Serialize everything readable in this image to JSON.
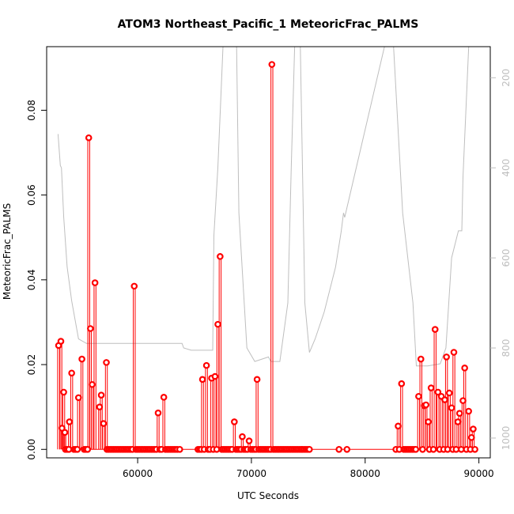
{
  "chart_data": {
    "type": "scatter",
    "title": "ATOM3 Northeast_Pacific_1 MeteoricFrac_PALMS",
    "xlabel": "UTC Seconds",
    "ylabel": "MeteoricFrac_PALMS",
    "xlim": [
      52000,
      91000
    ],
    "ylim": [
      -0.002,
      0.095
    ],
    "x_ticks": [
      {
        "value": 60000,
        "label": "60000"
      },
      {
        "value": 70000,
        "label": "70000"
      },
      {
        "value": 80000,
        "label": "80000"
      },
      {
        "value": 90000,
        "label": "90000"
      }
    ],
    "y_ticks": [
      {
        "value": 0.0,
        "label": "0.00"
      },
      {
        "value": 0.02,
        "label": "0.02"
      },
      {
        "value": 0.04,
        "label": "0.04"
      },
      {
        "value": 0.06,
        "label": "0.06"
      },
      {
        "value": 0.08,
        "label": "0.08"
      }
    ],
    "right_axis": {
      "reversed": true,
      "lim": [
        131,
        1044
      ],
      "ticks": [
        {
          "value": 200,
          "label": "200"
        },
        {
          "value": 400,
          "label": "400"
        },
        {
          "value": 600,
          "label": "600"
        },
        {
          "value": 800,
          "label": "800"
        },
        {
          "value": 1000,
          "label": "1000"
        }
      ]
    },
    "grid": false,
    "series": [
      {
        "color": "#ff0000",
        "style": "points with vertical drop lines to zero",
        "points": [
          [
            53050,
            0.0245
          ],
          [
            53250,
            0.0255
          ],
          [
            53350,
            0.005
          ],
          [
            53500,
            0.0135
          ],
          [
            53600,
            0.004
          ],
          [
            54000,
            0.0065
          ],
          [
            54200,
            0.018
          ],
          [
            54800,
            0.0122
          ],
          [
            55100,
            0.0213
          ],
          [
            55700,
            0.0735
          ],
          [
            55850,
            0.0285
          ],
          [
            56000,
            0.0153
          ],
          [
            56250,
            0.0393
          ],
          [
            56650,
            0.01
          ],
          [
            56800,
            0.0128
          ],
          [
            57000,
            0.0061
          ],
          [
            57250,
            0.0205
          ],
          [
            59700,
            0.0385
          ],
          [
            61800,
            0.0086
          ],
          [
            62300,
            0.0123
          ],
          [
            65700,
            0.0165
          ],
          [
            66050,
            0.0198
          ],
          [
            66500,
            0.0168
          ],
          [
            66800,
            0.0172
          ],
          [
            67050,
            0.0295
          ],
          [
            67250,
            0.0455
          ],
          [
            68500,
            0.0065
          ],
          [
            69200,
            0.003
          ],
          [
            69800,
            0.002
          ],
          [
            70500,
            0.0165
          ],
          [
            71800,
            0.0908
          ],
          [
            82900,
            0.0055
          ],
          [
            83200,
            0.0155
          ],
          [
            84700,
            0.0125
          ],
          [
            84900,
            0.0213
          ],
          [
            85200,
            0.0103
          ],
          [
            85350,
            0.0105
          ],
          [
            85550,
            0.0065
          ],
          [
            85800,
            0.0145
          ],
          [
            86150,
            0.0283
          ],
          [
            86400,
            0.0135
          ],
          [
            86700,
            0.0125
          ],
          [
            87000,
            0.0117
          ],
          [
            87150,
            0.0218
          ],
          [
            87400,
            0.0133
          ],
          [
            87600,
            0.0098
          ],
          [
            87800,
            0.0229
          ],
          [
            88150,
            0.0065
          ],
          [
            88300,
            0.0085
          ],
          [
            88600,
            0.0115
          ],
          [
            88750,
            0.0192
          ],
          [
            89100,
            0.009
          ],
          [
            89350,
            0.0028
          ],
          [
            89500,
            0.0048
          ],
          [
            53650,
            0
          ],
          [
            53800,
            0
          ],
          [
            53950,
            0
          ],
          [
            54400,
            0
          ],
          [
            54550,
            0
          ],
          [
            54700,
            0
          ],
          [
            55300,
            0
          ],
          [
            55450,
            0
          ],
          [
            55600,
            0
          ],
          [
            57300,
            0
          ],
          [
            57450,
            0
          ],
          [
            57600,
            0
          ],
          [
            57750,
            0
          ],
          [
            57900,
            0
          ],
          [
            58050,
            0
          ],
          [
            58200,
            0
          ],
          [
            58350,
            0
          ],
          [
            58500,
            0
          ],
          [
            58650,
            0
          ],
          [
            58800,
            0
          ],
          [
            58950,
            0
          ],
          [
            59100,
            0
          ],
          [
            59250,
            0
          ],
          [
            59400,
            0
          ],
          [
            59550,
            0
          ],
          [
            59850,
            0
          ],
          [
            60000,
            0
          ],
          [
            60150,
            0
          ],
          [
            60300,
            0
          ],
          [
            60450,
            0
          ],
          [
            60600,
            0
          ],
          [
            60750,
            0
          ],
          [
            60900,
            0
          ],
          [
            61050,
            0
          ],
          [
            61200,
            0
          ],
          [
            61350,
            0
          ],
          [
            61500,
            0
          ],
          [
            61650,
            0
          ],
          [
            61950,
            0
          ],
          [
            62100,
            0
          ],
          [
            62450,
            0
          ],
          [
            62600,
            0
          ],
          [
            62750,
            0
          ],
          [
            62900,
            0
          ],
          [
            63050,
            0
          ],
          [
            63200,
            0
          ],
          [
            63350,
            0
          ],
          [
            63500,
            0
          ],
          [
            63700,
            0
          ],
          [
            65300,
            0
          ],
          [
            65450,
            0
          ],
          [
            65600,
            0
          ],
          [
            65850,
            0
          ],
          [
            66200,
            0
          ],
          [
            66350,
            0
          ],
          [
            66650,
            0
          ],
          [
            66950,
            0
          ],
          [
            67400,
            0
          ],
          [
            67550,
            0
          ],
          [
            67700,
            0
          ],
          [
            67850,
            0
          ],
          [
            68000,
            0
          ],
          [
            68150,
            0
          ],
          [
            68300,
            0
          ],
          [
            68650,
            0
          ],
          [
            68800,
            0
          ],
          [
            68950,
            0
          ],
          [
            69100,
            0
          ],
          [
            69350,
            0
          ],
          [
            69500,
            0
          ],
          [
            69650,
            0
          ],
          [
            69950,
            0
          ],
          [
            70100,
            0
          ],
          [
            70250,
            0
          ],
          [
            70400,
            0
          ],
          [
            70650,
            0
          ],
          [
            70800,
            0
          ],
          [
            70950,
            0
          ],
          [
            71100,
            0
          ],
          [
            71250,
            0
          ],
          [
            71400,
            0
          ],
          [
            71550,
            0
          ],
          [
            71700,
            0
          ],
          [
            71950,
            0
          ],
          [
            72100,
            0
          ],
          [
            72250,
            0
          ],
          [
            72400,
            0
          ],
          [
            72550,
            0
          ],
          [
            72700,
            0
          ],
          [
            72850,
            0
          ],
          [
            73000,
            0
          ],
          [
            73150,
            0
          ],
          [
            73300,
            0
          ],
          [
            73450,
            0
          ],
          [
            73600,
            0
          ],
          [
            73750,
            0
          ],
          [
            73900,
            0
          ],
          [
            74050,
            0
          ],
          [
            74200,
            0
          ],
          [
            74350,
            0
          ],
          [
            74500,
            0
          ],
          [
            74650,
            0
          ],
          [
            74800,
            0
          ],
          [
            74950,
            0
          ],
          [
            75100,
            0
          ],
          [
            77700,
            0
          ],
          [
            78400,
            0
          ],
          [
            82700,
            0
          ],
          [
            83000,
            0
          ],
          [
            83400,
            0
          ],
          [
            83550,
            0
          ],
          [
            83700,
            0
          ],
          [
            83850,
            0
          ],
          [
            84000,
            0
          ],
          [
            84150,
            0
          ],
          [
            84300,
            0
          ],
          [
            84450,
            0
          ],
          [
            85050,
            0
          ],
          [
            85650,
            0
          ],
          [
            86000,
            0
          ],
          [
            86550,
            0
          ],
          [
            86900,
            0
          ],
          [
            87250,
            0
          ],
          [
            87700,
            0
          ],
          [
            88000,
            0
          ],
          [
            88450,
            0
          ],
          [
            88900,
            0
          ],
          [
            89250,
            0
          ],
          [
            89650,
            0
          ]
        ]
      },
      {
        "color": "#bebebe",
        "axis": "right",
        "style": "line",
        "points": [
          [
            53000,
            325
          ],
          [
            53200,
            395
          ],
          [
            53300,
            400
          ],
          [
            53500,
            510
          ],
          [
            53800,
            620
          ],
          [
            54200,
            695
          ],
          [
            54800,
            780
          ],
          [
            55500,
            790
          ],
          [
            57000,
            790
          ],
          [
            60000,
            790
          ],
          [
            63900,
            790
          ],
          [
            64050,
            800
          ],
          [
            64700,
            805
          ],
          [
            66000,
            805
          ],
          [
            66600,
            805
          ],
          [
            66700,
            550
          ],
          [
            67050,
            400
          ],
          [
            67500,
            131
          ],
          [
            68700,
            131
          ],
          [
            68900,
            500
          ],
          [
            69600,
            800
          ],
          [
            70300,
            830
          ],
          [
            71500,
            820
          ],
          [
            71700,
            830
          ],
          [
            72500,
            830
          ],
          [
            73200,
            700
          ],
          [
            73500,
            400
          ],
          [
            73800,
            131
          ],
          [
            74300,
            131
          ],
          [
            74700,
            700
          ],
          [
            75100,
            810
          ],
          [
            75600,
            780
          ],
          [
            76400,
            720
          ],
          [
            77400,
            620
          ],
          [
            77900,
            540
          ],
          [
            78100,
            500
          ],
          [
            78200,
            510
          ],
          [
            81700,
            131
          ],
          [
            82500,
            131
          ],
          [
            83300,
            500
          ],
          [
            84200,
            700
          ],
          [
            84500,
            840
          ],
          [
            85500,
            840
          ],
          [
            86600,
            835
          ],
          [
            87100,
            800
          ],
          [
            87600,
            600
          ],
          [
            88200,
            540
          ],
          [
            88500,
            540
          ],
          [
            88600,
            420
          ],
          [
            89100,
            131
          ]
        ]
      }
    ]
  }
}
